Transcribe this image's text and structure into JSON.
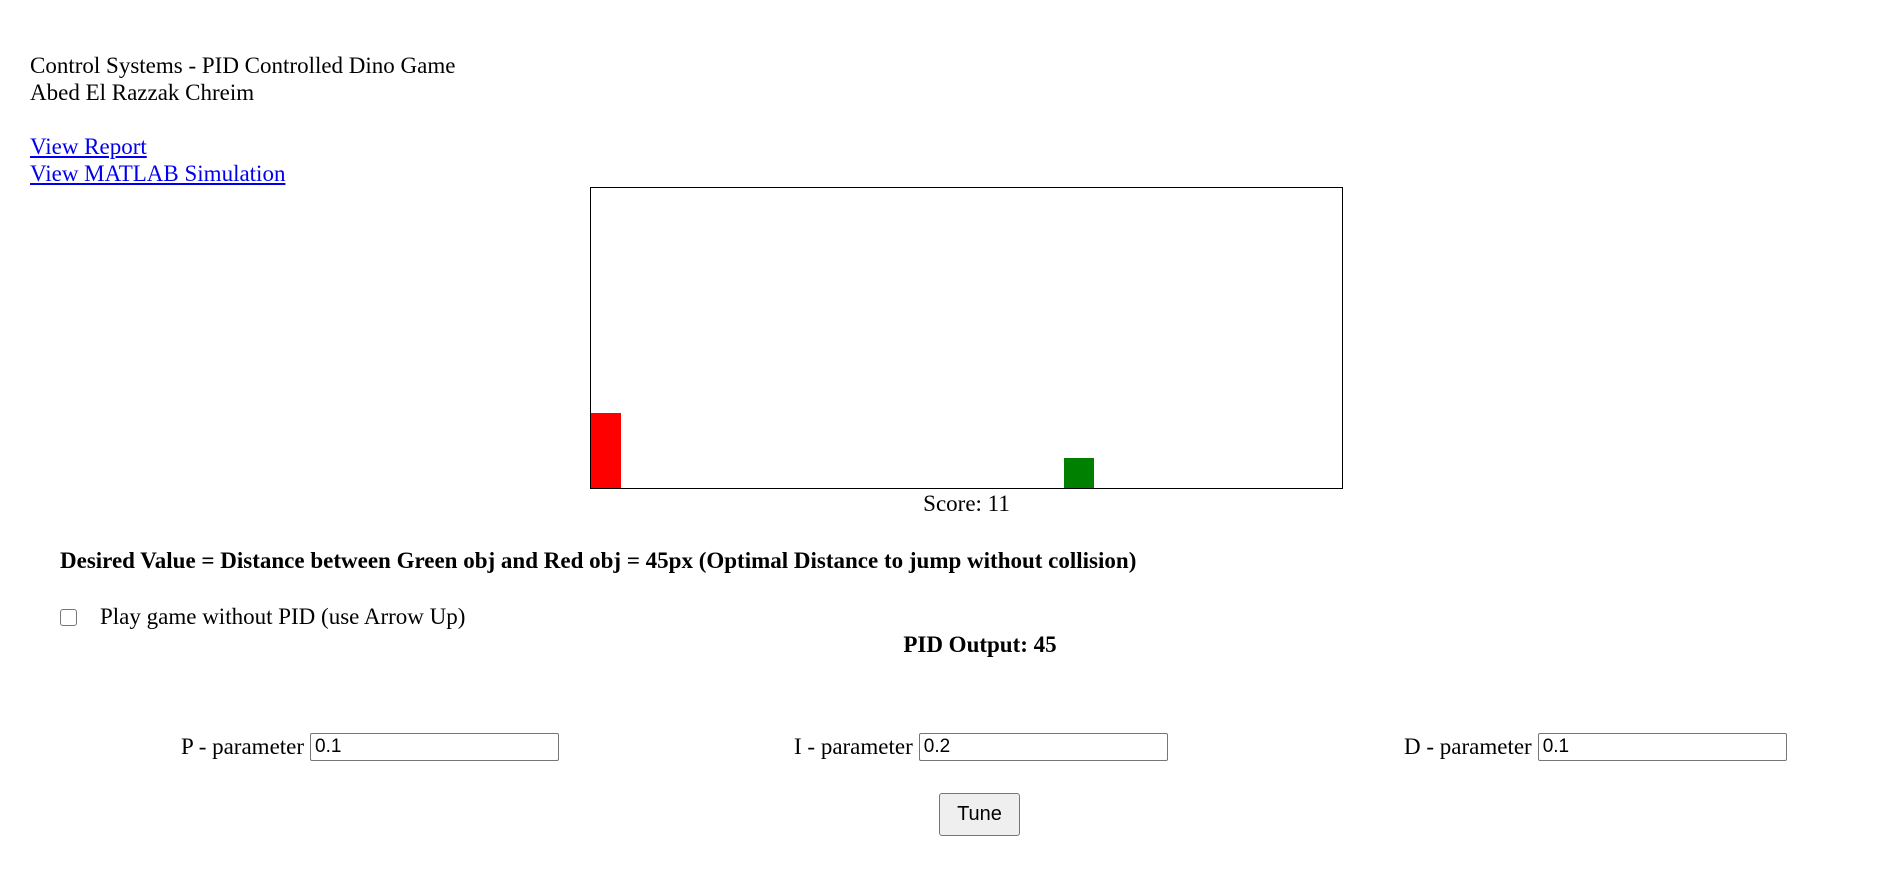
{
  "header": {
    "title": "Control Systems - PID Controlled Dino Game",
    "author": "Abed El Razzak Chreim"
  },
  "links": {
    "report": "View Report",
    "matlab": "View MATLAB Simulation"
  },
  "game": {
    "colors": {
      "dino": "#ff0000",
      "obstacle": "#008000",
      "border": "#000000"
    },
    "score_label": "Score: 11"
  },
  "desired_value_text": "Desired Value = Distance between Green obj and Red obj = 45px (Optimal Distance to jump without collision)",
  "manual_play": {
    "label": "Play game without PID (use Arrow Up)",
    "checked": false
  },
  "pid_output_label": "PID Output: 45",
  "params": {
    "p": {
      "label": "P - parameter",
      "value": "0.1"
    },
    "i": {
      "label": "I - parameter",
      "value": "0.2"
    },
    "d": {
      "label": "D - parameter",
      "value": "0.1"
    }
  },
  "tune_label": "Tune"
}
